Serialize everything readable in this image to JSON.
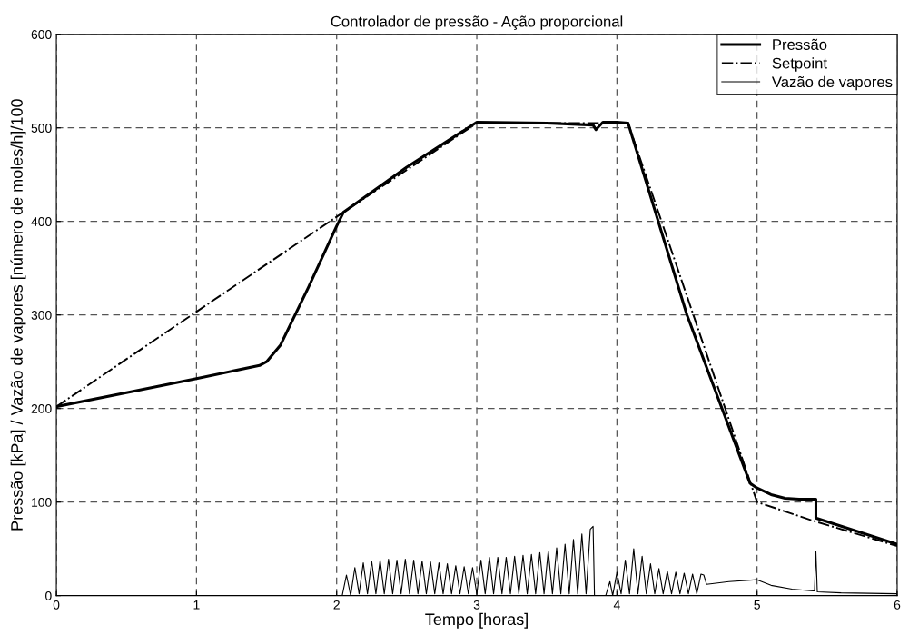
{
  "chart_data": {
    "type": "line",
    "title": "Controlador de pressão - Ação proporcional",
    "xlabel": "Tempo [horas]",
    "ylabel": "Pressão [kPa] / Vazão de vapores [número de moles/h]/100",
    "xlim": [
      0,
      6
    ],
    "ylim": [
      0,
      600
    ],
    "xticks": [
      0,
      1,
      2,
      3,
      4,
      5,
      6
    ],
    "yticks": [
      0,
      100,
      200,
      300,
      400,
      500,
      600
    ],
    "grid": true,
    "legend": "top right",
    "series": [
      {
        "name": "Pressão",
        "color": "#000000",
        "line_style": "solid",
        "x": [
          0,
          0.5,
          1.0,
          1.45,
          1.5,
          1.6,
          1.8,
          2.0,
          2.05,
          2.5,
          3.0,
          3.5,
          3.83,
          3.85,
          3.9,
          4.0,
          4.08,
          4.5,
          4.95,
          5.0,
          5.1,
          5.2,
          5.3,
          5.42,
          5.42,
          6.0
        ],
        "values": [
          202,
          217,
          232,
          246,
          250,
          268,
          330,
          395,
          410,
          458,
          506,
          505,
          503,
          498,
          506,
          506,
          505,
          300,
          120,
          115,
          108,
          104,
          103,
          103,
          83,
          55
        ]
      },
      {
        "name": "Setpoint",
        "color": "#000000",
        "line_style": "dashdot",
        "x": [
          0,
          2.05,
          3.0,
          4.0,
          4.08,
          5.0,
          5.4,
          6.0
        ],
        "values": [
          202,
          410,
          505,
          505,
          505,
          100,
          80,
          53
        ]
      },
      {
        "name": "Vazão de vapores",
        "color": "#000000",
        "line_style": "solid",
        "x": [
          0,
          2.04,
          2.07,
          2.1,
          2.13,
          2.16,
          2.19,
          2.22,
          2.25,
          2.28,
          2.31,
          2.34,
          2.37,
          2.4,
          2.43,
          2.46,
          2.49,
          2.52,
          2.55,
          2.58,
          2.61,
          2.64,
          2.67,
          2.7,
          2.73,
          2.76,
          2.79,
          2.82,
          2.85,
          2.88,
          2.91,
          2.94,
          2.97,
          3.0,
          3.03,
          3.06,
          3.09,
          3.12,
          3.15,
          3.18,
          3.21,
          3.24,
          3.27,
          3.3,
          3.33,
          3.36,
          3.39,
          3.42,
          3.45,
          3.48,
          3.51,
          3.54,
          3.57,
          3.6,
          3.63,
          3.66,
          3.69,
          3.72,
          3.75,
          3.78,
          3.81,
          3.83,
          3.84,
          3.92,
          3.95,
          3.97,
          4.0,
          4.03,
          4.06,
          4.09,
          4.12,
          4.15,
          4.18,
          4.21,
          4.24,
          4.27,
          4.3,
          4.33,
          4.36,
          4.39,
          4.42,
          4.45,
          4.48,
          4.51,
          4.54,
          4.57,
          4.6,
          4.62,
          4.64,
          4.8,
          5.0,
          5.1,
          5.25,
          5.4,
          5.41,
          5.42,
          5.43,
          5.6,
          6.0
        ],
        "values": [
          0,
          0,
          22,
          0,
          30,
          2,
          35,
          2,
          37,
          2,
          38,
          2,
          39,
          2,
          38,
          2,
          39,
          2,
          38,
          2,
          37,
          2,
          36,
          2,
          35,
          2,
          34,
          2,
          32,
          2,
          31,
          2,
          30,
          2,
          38,
          2,
          41,
          2,
          41,
          2,
          41,
          2,
          42,
          2,
          43,
          2,
          44,
          2,
          46,
          2,
          48,
          2,
          51,
          2,
          55,
          2,
          60,
          2,
          66,
          2,
          71,
          74,
          0,
          0,
          15,
          0,
          25,
          2,
          38,
          2,
          50,
          2,
          42,
          2,
          34,
          2,
          29,
          2,
          26,
          2,
          25,
          2,
          24,
          2,
          23,
          2,
          23,
          22,
          12,
          15,
          17,
          11,
          7,
          5,
          5,
          47,
          4,
          3,
          2
        ]
      }
    ]
  }
}
